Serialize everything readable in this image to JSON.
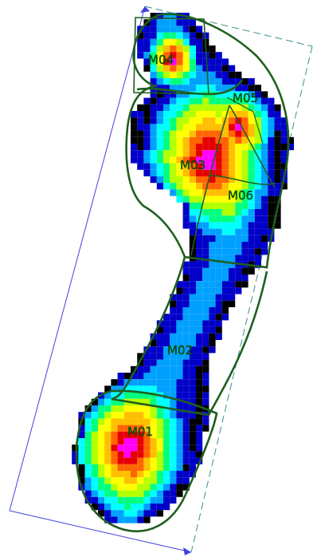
{
  "regions": [
    {
      "id": "M01",
      "label": "M01"
    },
    {
      "id": "M02",
      "label": "M02"
    },
    {
      "id": "M03",
      "label": "M03"
    },
    {
      "id": "M04",
      "label": "M04"
    },
    {
      "id": "M05",
      "label": "M05"
    },
    {
      "id": "M06",
      "label": "M06"
    }
  ],
  "palette": {
    "background": "#ffffff",
    "outline": "#1f5f1f",
    "frame_solid": "#4040e0",
    "frame_dashed": "#3a8f8f",
    "label": "#006400",
    "scale": [
      "#000000",
      "#0000c8",
      "#00a0ff",
      "#00ffff",
      "#00ff7f",
      "#b4ff00",
      "#ffff00",
      "#ffbf00",
      "#ff6400",
      "#e60000",
      "#ff00ff"
    ]
  },
  "cell_values_note_free": true
}
